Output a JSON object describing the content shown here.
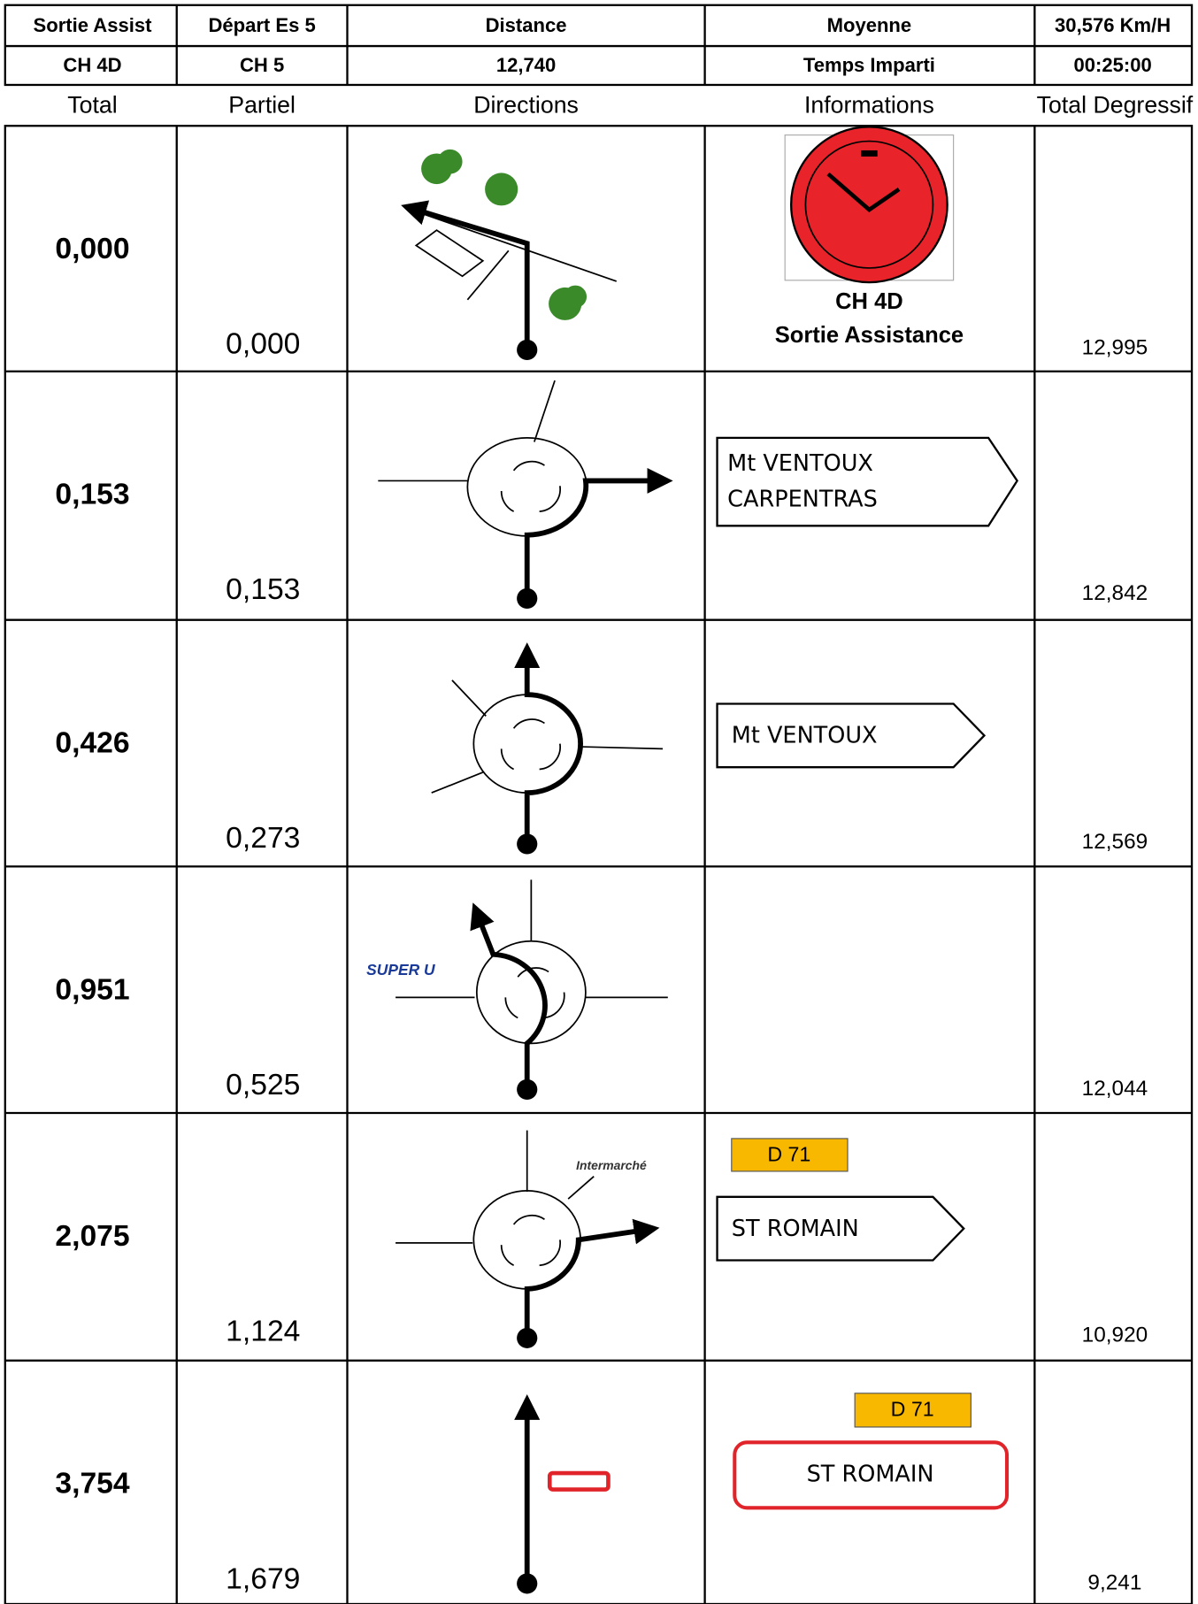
{
  "header": {
    "rows": [
      [
        "Sortie Assist",
        "Départ Es 5",
        "Distance",
        "Moyenne",
        "30,576 Km/H"
      ],
      [
        "CH 4D",
        "CH 5",
        "12,740",
        "Temps Imparti",
        "00:25:00"
      ]
    ]
  },
  "columns": [
    "Total",
    "Partiel",
    "Directions",
    "Informations",
    "Total Degressif"
  ],
  "rows": [
    {
      "total": "0,000",
      "partial": "0,000",
      "degressif": "12,995",
      "info": [
        "CH 4D",
        "Sortie Assistance"
      ]
    },
    {
      "total": "0,153",
      "partial": "0,153",
      "degressif": "12,842",
      "info": [
        "Mt VENTOUX",
        "CARPENTRAS"
      ]
    },
    {
      "total": "0,426",
      "partial": "0,273",
      "degressif": "12,569",
      "info": [
        "Mt VENTOUX"
      ]
    },
    {
      "total": "0,951",
      "partial": "0,525",
      "degressif": "12,044",
      "logo": "SUPER U"
    },
    {
      "total": "2,075",
      "partial": "1,124",
      "degressif": "10,920",
      "logo": "Intermarché",
      "info": [
        "D 71",
        "ST ROMAIN"
      ]
    },
    {
      "total": "3,754",
      "partial": "1,679",
      "degressif": "9,241",
      "info": [
        "D 71",
        "ST ROMAIN"
      ]
    }
  ]
}
